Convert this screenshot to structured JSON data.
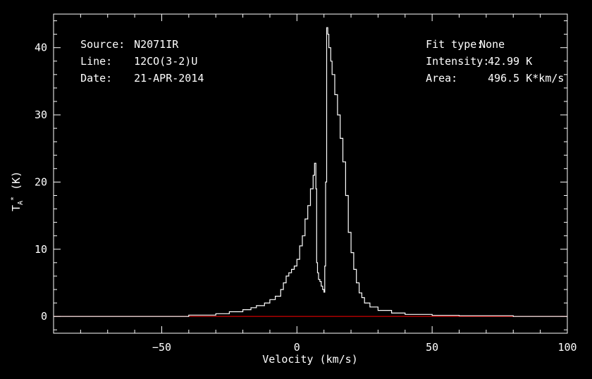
{
  "header_left": {
    "source_label": "Source:",
    "source_value": "N2071IR",
    "line_label": "Line:",
    "line_value": "12CO(3-2)U",
    "date_label": "Date:",
    "date_value": "21-APR-2014"
  },
  "header_right": {
    "fit_label": "Fit type:",
    "fit_value": "None",
    "intensity_label": "Intensity:",
    "intensity_value": "42.99 K",
    "area_label": "Area:",
    "area_value": "496.5 K*km/s"
  },
  "chart_data": {
    "type": "line",
    "title": "",
    "xlabel": "Velocity (km/s)",
    "ylabel_main": "T",
    "ylabel_sub": "A",
    "ylabel_sup": "*",
    "ylabel_unit": " (K)",
    "xlim": [
      -90,
      100
    ],
    "ylim": [
      -2.5,
      45
    ],
    "xticks": [
      -50,
      0,
      50,
      100
    ],
    "xtick_labels": [
      "−50",
      "0",
      "50",
      "100"
    ],
    "yticks": [
      0,
      10,
      20,
      30,
      40
    ],
    "ytick_labels": [
      "0",
      "10",
      "20",
      "30",
      "40"
    ],
    "baseline": {
      "name": "",
      "y": 0,
      "color": "#ff0000"
    },
    "series": [
      {
        "color": "#ffffff",
        "x": [
          -90,
          -60,
          -40,
          -30,
          -25,
          -20,
          -17,
          -15,
          -12,
          -10,
          -8,
          -6,
          -5,
          -4,
          -3,
          -2,
          -1,
          0,
          1,
          2,
          3,
          4,
          5,
          6,
          6.5,
          7,
          7.3,
          7.6,
          8,
          8.5,
          9,
          9.5,
          10,
          10.3,
          10.6,
          11,
          11.4,
          11.8,
          12.5,
          13,
          14,
          15,
          16,
          17,
          18,
          19,
          20,
          21,
          22,
          23,
          24,
          25,
          27,
          30,
          35,
          40,
          50,
          60,
          80,
          100
        ],
        "values": [
          0,
          0,
          0.2,
          0.4,
          0.7,
          1.0,
          1.3,
          1.6,
          2.0,
          2.5,
          3.0,
          4.0,
          5.0,
          6.0,
          6.5,
          7.0,
          7.5,
          8.5,
          10.5,
          12.0,
          14.5,
          16.5,
          19.0,
          21.0,
          22.8,
          19.0,
          8.0,
          6.5,
          5.5,
          5.2,
          4.5,
          4.0,
          3.6,
          7.5,
          20.0,
          42.99,
          42.0,
          40.0,
          38.0,
          36.0,
          33.0,
          30.0,
          26.5,
          23.0,
          18.0,
          12.5,
          9.5,
          7.0,
          5.0,
          3.5,
          2.8,
          2.0,
          1.4,
          0.9,
          0.5,
          0.3,
          0.15,
          0.1,
          0,
          0
        ]
      }
    ]
  }
}
